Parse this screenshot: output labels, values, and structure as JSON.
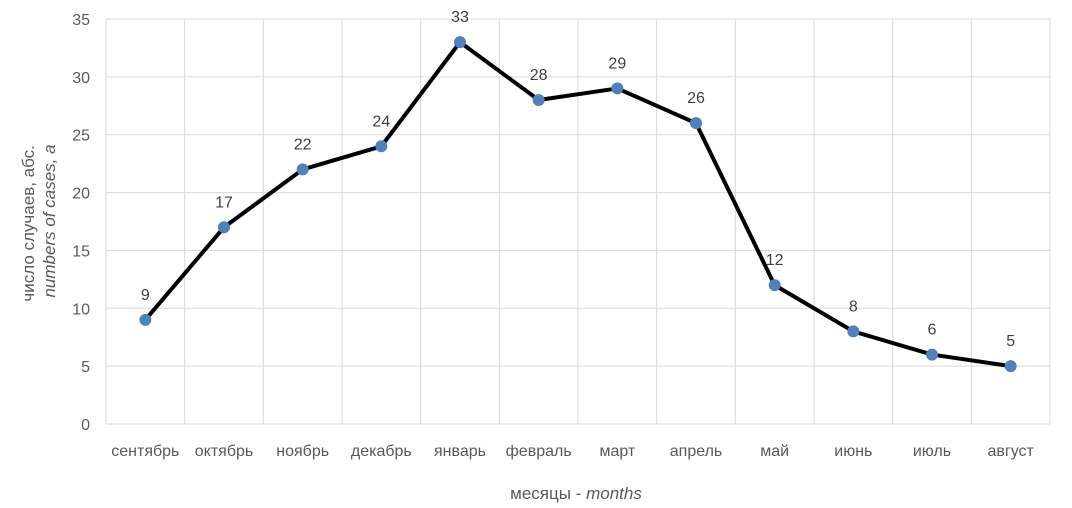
{
  "chart_data": {
    "type": "line",
    "title": "",
    "categories": [
      "сентябрь",
      "октябрь",
      "ноябрь",
      "декабрь",
      "январь",
      "февраль",
      "март",
      "апрель",
      "май",
      "июнь",
      "июль",
      "август"
    ],
    "series": [
      {
        "name": "число случаев",
        "values": [
          9,
          17,
          22,
          24,
          33,
          28,
          29,
          26,
          12,
          8,
          6,
          5
        ],
        "line_color": "#000000",
        "marker_color": "#4F81BD"
      }
    ],
    "ylim": [
      0,
      35
    ],
    "ytick_step": 5,
    "ytick_labels": [
      "0",
      "5",
      "10",
      "15",
      "20",
      "25",
      "30",
      "35"
    ],
    "grid": true,
    "grid_color": "#D9D9D9",
    "xlabel": {
      "main": "месяцы - ",
      "italic": "months"
    },
    "ylabel": {
      "line1": "число случаев, абс.",
      "line2": "numbers of cases, a"
    },
    "data_labels": true
  }
}
